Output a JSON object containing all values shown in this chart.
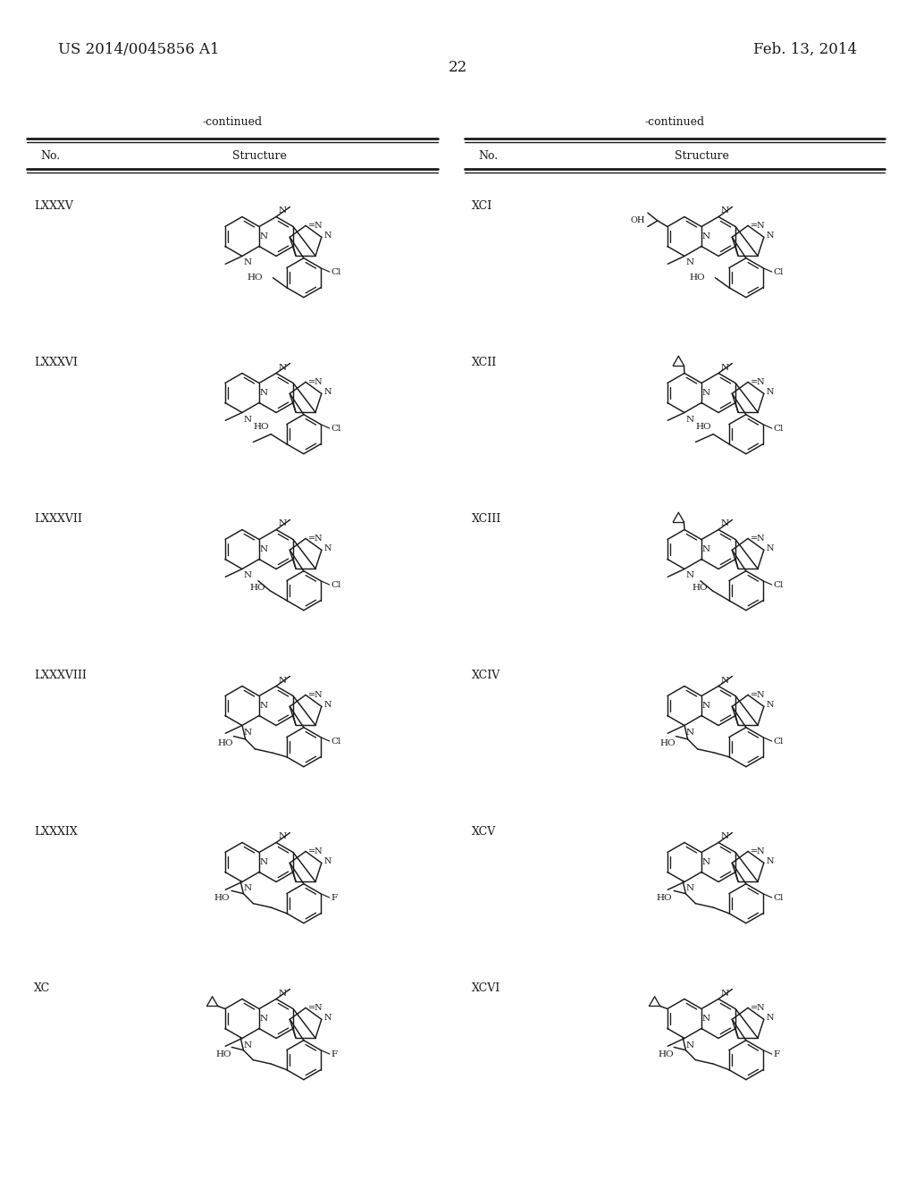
{
  "page_header_left": "US 2014/0045856 A1",
  "page_header_right": "Feb. 13, 2014",
  "page_number": "22",
  "background_color": "#ffffff",
  "text_color": "#1a1a1a",
  "table_header": "-continued",
  "col1_header": "No.",
  "col2_header": "Structure",
  "left_compounds": [
    "LXXXV",
    "LXXXVI",
    "LXXXVII",
    "LXXXVIII",
    "LXXXIX",
    "XC"
  ],
  "right_compounds": [
    "XCI",
    "XCII",
    "XCIII",
    "XCIV",
    "XCV",
    "XCVI"
  ],
  "left_subs": [
    "Cl",
    "Cl",
    "Cl",
    "Cl",
    "F",
    "F"
  ],
  "right_subs": [
    "Cl",
    "Cl",
    "Cl",
    "Cl",
    "Cl",
    "F"
  ],
  "left_chains": [
    0,
    1,
    2,
    3,
    4,
    5
  ],
  "right_chains": [
    6,
    7,
    8,
    9,
    10,
    11
  ]
}
